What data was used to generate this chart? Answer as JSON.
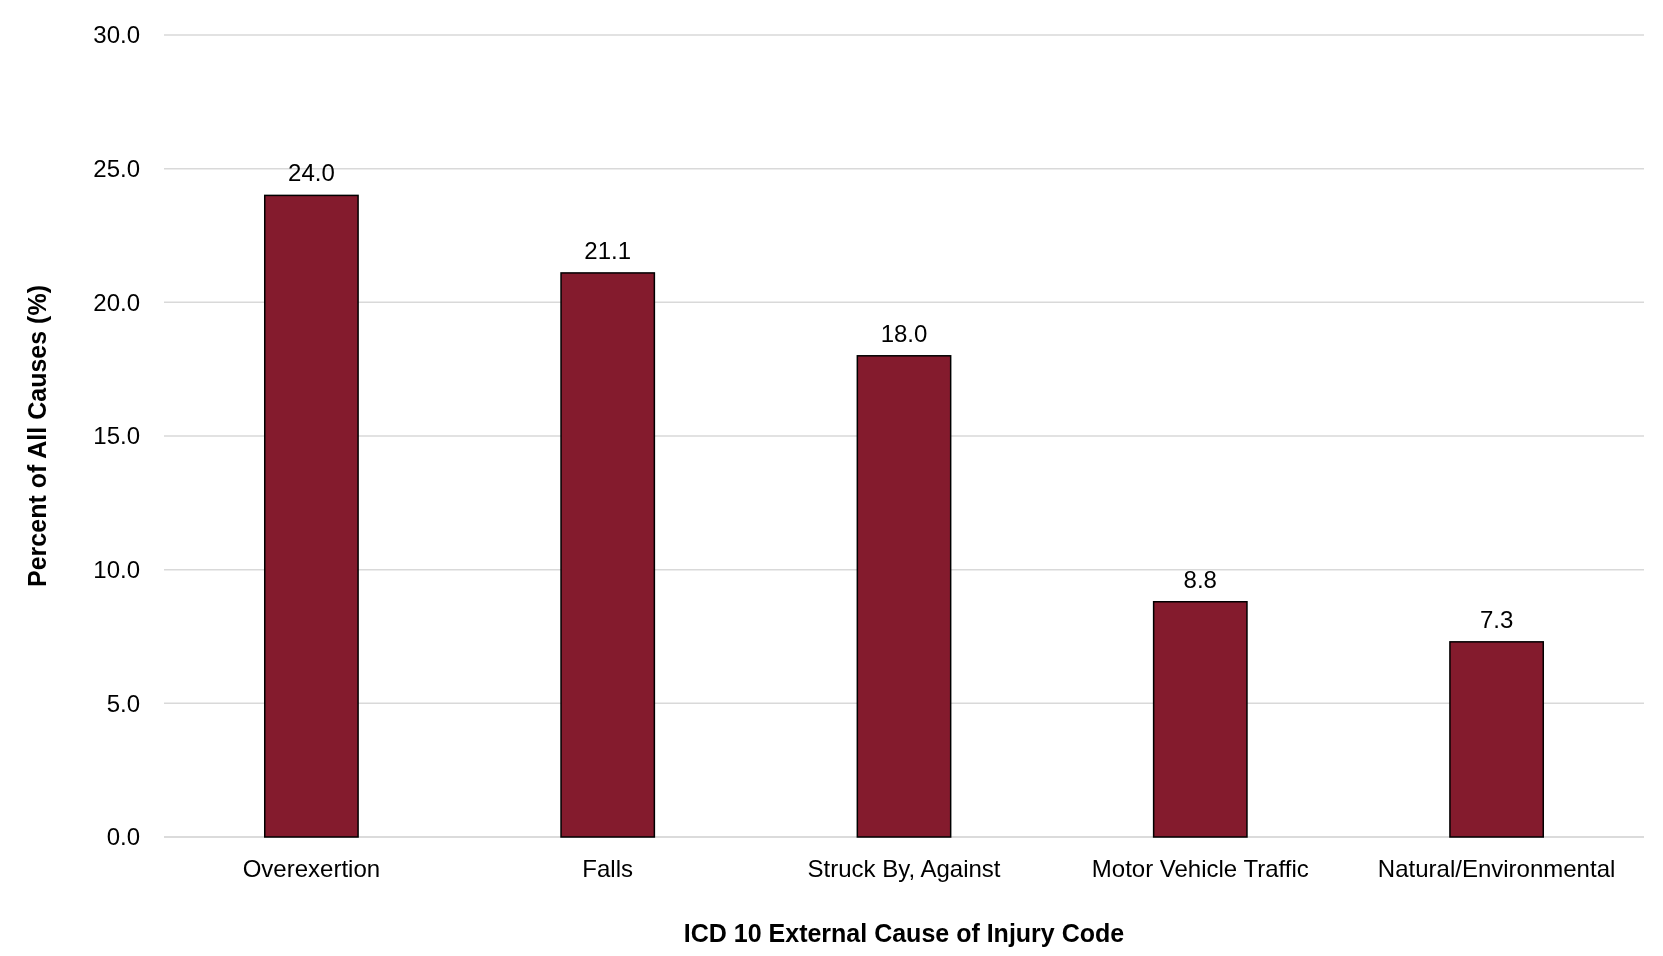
{
  "chart_data": {
    "type": "bar",
    "xlabel": "ICD 10 External Cause of Injury Code",
    "ylabel": "Percent of All Causes (%)",
    "categories": [
      "Overexertion",
      "Falls",
      "Struck By, Against",
      "Motor Vehicle Traffic",
      "Natural/Environmental"
    ],
    "values": [
      24.0,
      21.1,
      18.0,
      8.8,
      7.3
    ],
    "value_labels": [
      "24.0",
      "21.1",
      "18.0",
      "8.8",
      "7.3"
    ],
    "color": "#841b2d",
    "ylim": [
      0,
      30
    ],
    "yticks": [
      {
        "value": 0,
        "label": "0.0"
      },
      {
        "value": 5,
        "label": "5.0"
      },
      {
        "value": 10,
        "label": "10.0"
      },
      {
        "value": 15,
        "label": "15.0"
      },
      {
        "value": 20,
        "label": "20.0"
      },
      {
        "value": 25,
        "label": "25.0"
      },
      {
        "value": 30,
        "label": "30.0"
      }
    ],
    "grid": "y"
  }
}
